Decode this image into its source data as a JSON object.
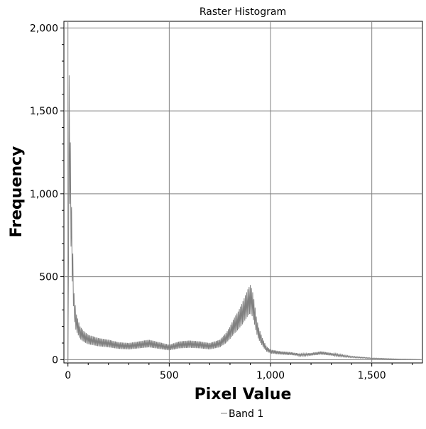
{
  "chart_data": {
    "type": "line",
    "title": "Raster Histogram",
    "xlabel": "Pixel Value",
    "ylabel": "Frequency",
    "xlim": [
      -20,
      1750
    ],
    "ylim": [
      -20,
      2040
    ],
    "xticks": [
      0,
      500,
      1000,
      1500
    ],
    "xtick_labels": [
      "0",
      "500",
      "1,000",
      "1,500"
    ],
    "yticks": [
      0,
      500,
      1000,
      1500,
      2000
    ],
    "ytick_labels": [
      "0",
      "500",
      "1,000",
      "1,500",
      "2,000"
    ],
    "grid": true,
    "legend_position": "bottom-center",
    "series": [
      {
        "name": "Band 1",
        "color": "#808080",
        "x": [
          0,
          5,
          10,
          15,
          20,
          30,
          40,
          60,
          80,
          100,
          150,
          200,
          250,
          300,
          350,
          400,
          450,
          500,
          550,
          600,
          650,
          700,
          750,
          780,
          800,
          820,
          840,
          860,
          880,
          890,
          900,
          910,
          920,
          930,
          940,
          960,
          980,
          1000,
          1050,
          1100,
          1150,
          1200,
          1250,
          1300,
          1350,
          1400,
          1450,
          1500,
          1550,
          1600,
          1650,
          1700,
          1740
        ],
        "y": [
          0,
          1780,
          1450,
          1100,
          800,
          400,
          280,
          200,
          170,
          150,
          130,
          120,
          105,
          100,
          110,
          120,
          105,
          90,
          110,
          115,
          110,
          100,
          120,
          160,
          200,
          250,
          290,
          340,
          400,
          430,
          450,
          420,
          350,
          260,
          200,
          130,
          80,
          60,
          50,
          45,
          35,
          40,
          50,
          40,
          30,
          20,
          15,
          10,
          8,
          5,
          3,
          2,
          0
        ]
      }
    ]
  }
}
